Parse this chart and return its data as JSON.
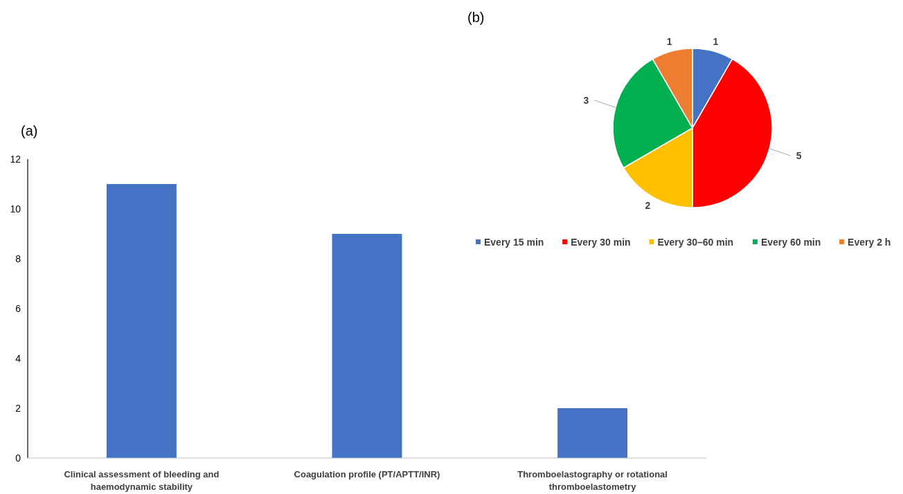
{
  "chart_data": [
    {
      "type": "bar",
      "title": "(a)",
      "categories": [
        "Clinical assessment of bleeding and haemodynamic stability",
        "Coagulation profile (PT/APTT/INR)",
        "Thromboelastography or rotational thromboelastometry"
      ],
      "values": [
        11,
        9,
        2
      ],
      "color": "#4472c4",
      "ylim": [
        0,
        12
      ],
      "yticks": [
        0,
        2,
        4,
        6,
        8,
        10,
        12
      ],
      "grid": false
    },
    {
      "type": "pie",
      "title": "(b)",
      "categories": [
        "Every 15 min",
        "Every 30 min",
        "Every 30–60 min",
        "Every 60 min",
        "Every 2 h"
      ],
      "values": [
        1,
        5,
        2,
        3,
        1
      ],
      "colors": [
        "#4472c4",
        "#ff0000",
        "#ffc000",
        "#00b050",
        "#ed7d31"
      ],
      "data_labels": true,
      "legend": "bottom"
    }
  ]
}
